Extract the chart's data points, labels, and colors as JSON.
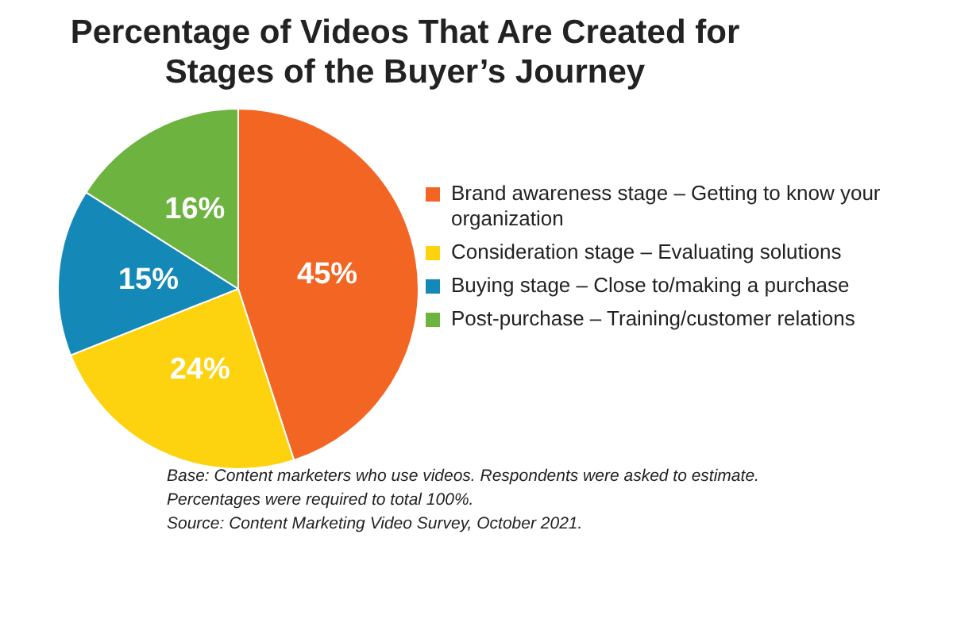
{
  "chart_data": {
    "type": "pie",
    "title": "Percentage of Videos That Are Created for Stages of the Buyer’s Journey",
    "categories": [
      "Brand awareness stage – Getting to know your organization",
      "Consideration stage – Evaluating solutions",
      "Buying stage – Close to/making a purchase",
      "Post-purchase – Training/customer relations"
    ],
    "values": [
      45,
      24,
      15,
      16
    ],
    "value_labels": [
      "45%",
      "24%",
      "15%",
      "16%"
    ],
    "colors": [
      "#f26522",
      "#fdd20e",
      "#1489b8",
      "#6cb33f"
    ],
    "legend": "right",
    "annotations": [
      "Base: Content marketers who use videos. Respondents were asked to estimate.",
      "Percentages were required to total 100%.",
      "Source: Content Marketing Video Survey, October 2021."
    ]
  }
}
